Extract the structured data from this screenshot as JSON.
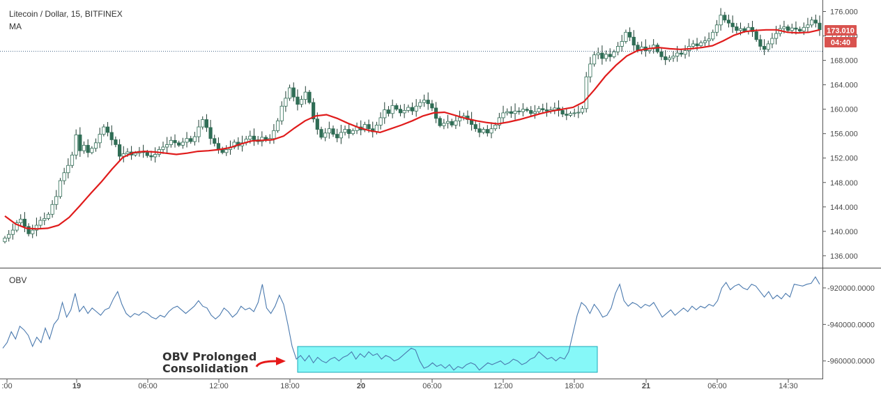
{
  "chart_data": [
    {
      "type": "candlestick",
      "title": "Litecoin / Dollar, 15, BITFINEX",
      "indicator_label": "MA",
      "y_ticks": [
        "176.000",
        "172.000",
        "168.000",
        "164.000",
        "160.000",
        "156.000",
        "152.000",
        "148.000",
        "144.000",
        "140.000",
        "136.000"
      ],
      "ylim": [
        134.5,
        177.2
      ],
      "last_price": "173.010",
      "countdown": "04:40",
      "colors": {
        "up": "#26a69a",
        "down": "#ef5350",
        "ma": "#e01b1b",
        "price_badge": "#d9534f"
      },
      "ohlc_closes": [
        138.9,
        139.5,
        140.2,
        141.4,
        142.0,
        140.8,
        139.6,
        140.2,
        141.0,
        141.8,
        142.1,
        142.8,
        144.4,
        145.7,
        148.3,
        149.6,
        150.8,
        152.5,
        155.8,
        153.2,
        154.1,
        152.9,
        153.6,
        154.5,
        155.9,
        157.1,
        156.2,
        155.0,
        154.2,
        152.3,
        152.7,
        153.0,
        152.5,
        152.8,
        153.1,
        152.9,
        152.4,
        152.2,
        152.6,
        153.4,
        153.8,
        154.2,
        154.9,
        154.5,
        154.1,
        154.6,
        155.2,
        154.7,
        155.5,
        157.1,
        158.3,
        157.0,
        155.2,
        154.4,
        153.5,
        152.9,
        153.4,
        153.8,
        154.6,
        154.0,
        154.5,
        155.1,
        155.6,
        155.0,
        154.7,
        155.4,
        154.9,
        155.2,
        156.5,
        158.1,
        160.5,
        161.8,
        163.5,
        162.0,
        160.8,
        161.6,
        162.8,
        161.1,
        158.4,
        156.7,
        155.4,
        156.1,
        156.8,
        155.9,
        155.3,
        156.2,
        156.7,
        156.0,
        156.5,
        157.1,
        156.6,
        157.5,
        156.8,
        156.3,
        157.4,
        158.6,
        159.9,
        159.3,
        160.6,
        160.0,
        159.4,
        159.8,
        160.3,
        159.7,
        160.5,
        161.1,
        161.5,
        160.9,
        160.2,
        158.5,
        157.3,
        157.7,
        158.0,
        157.4,
        158.1,
        158.6,
        158.9,
        158.3,
        157.5,
        156.8,
        156.2,
        156.7,
        156.1,
        156.8,
        157.4,
        158.6,
        159.4,
        159.6,
        159.3,
        159.7,
        159.6,
        160.0,
        159.8,
        159.3,
        159.6,
        160.1,
        159.9,
        159.7,
        159.9,
        160.2,
        159.8,
        159.2,
        159.0,
        159.3,
        159.4,
        159.5,
        160.1,
        165.3,
        167.4,
        168.9,
        169.2,
        168.3,
        169.0,
        168.6,
        169.4,
        170.3,
        171.1,
        172.6,
        171.8,
        170.5,
        169.7,
        170.2,
        169.6,
        169.9,
        170.5,
        169.4,
        168.6,
        168.1,
        168.4,
        168.7,
        169.2,
        169.0,
        169.6,
        170.3,
        170.7,
        170.4,
        170.9,
        171.2,
        171.5,
        172.6,
        173.8,
        175.4,
        174.6,
        174.1,
        173.5,
        172.9,
        173.2,
        172.8,
        173.4,
        172.7,
        171.4,
        170.3,
        169.8,
        170.7,
        171.6,
        172.4,
        173.2,
        173.5,
        172.9,
        173.3,
        173.1,
        172.8,
        173.4,
        173.8,
        174.6,
        174.1,
        173.01
      ],
      "ma_values": [
        142.5,
        141.2,
        140.5,
        140.4,
        140.5,
        141.0,
        142.3,
        144.2,
        146.2,
        148.1,
        150.2,
        152.1,
        152.9,
        153.1,
        153.0,
        152.8,
        152.6,
        152.8,
        153.1,
        153.2,
        153.4,
        153.7,
        154.3,
        154.8,
        154.9,
        155.0,
        155.6,
        156.9,
        158.1,
        158.9,
        159.1,
        158.5,
        157.7,
        157.0,
        156.5,
        156.2,
        156.8,
        157.4,
        158.1,
        158.9,
        159.4,
        159.5,
        159.0,
        158.5,
        158.1,
        157.8,
        157.6,
        157.9,
        158.3,
        158.8,
        159.3,
        159.7,
        160.0,
        160.3,
        161.2,
        163.2,
        165.4,
        167.2,
        168.7,
        169.6,
        169.9,
        170.1,
        169.9,
        169.8,
        169.9,
        170.1,
        170.4,
        171.2,
        172.1,
        172.7,
        172.9,
        173.0,
        173.0,
        172.6,
        172.5,
        172.6,
        173.0
      ],
      "obv_y_ticks": [
        "-920000.0000",
        "-940000.0000",
        "-960000.0000"
      ],
      "obv_ylim": [
        -968500,
        -912000
      ],
      "obv_values": [
        -953000,
        -950000,
        -944000,
        -948000,
        -941000,
        -943000,
        -946000,
        -952000,
        -947000,
        -950000,
        -942000,
        -948000,
        -940000,
        -937000,
        -928000,
        -936000,
        -932000,
        -923000,
        -933000,
        -930000,
        -934000,
        -931000,
        -933000,
        -935000,
        -932000,
        -931000,
        -926000,
        -922000,
        -929000,
        -934000,
        -936000,
        -934000,
        -935000,
        -933000,
        -934000,
        -936000,
        -937000,
        -935000,
        -936000,
        -933000,
        -931000,
        -930000,
        -932000,
        -934000,
        -932000,
        -930000,
        -927000,
        -930000,
        -931000,
        -935000,
        -937000,
        -935000,
        -931000,
        -933000,
        -936000,
        -934000,
        -930000,
        -932000,
        -931000,
        -933000,
        -928000,
        -918000,
        -931000,
        -934000,
        -930000,
        -924000,
        -929000,
        -940000,
        -952000,
        -959000,
        -957000,
        -960000,
        -957000,
        -961000,
        -958000,
        -960000,
        -961000,
        -959000,
        -958000,
        -960000,
        -958000,
        -957000,
        -955000,
        -959000,
        -956000,
        -958000,
        -955000,
        -957000,
        -956000,
        -959000,
        -957000,
        -958000,
        -960000,
        -959000,
        -957000,
        -955000,
        -953000,
        -954000,
        -960000,
        -964000,
        -963000,
        -961000,
        -963000,
        -962000,
        -964000,
        -962000,
        -965000,
        -963000,
        -964000,
        -962000,
        -961000,
        -962000,
        -965000,
        -963000,
        -961000,
        -962000,
        -961000,
        -960000,
        -962000,
        -961000,
        -959000,
        -960000,
        -962000,
        -961000,
        -959000,
        -958000,
        -955000,
        -957000,
        -959000,
        -958000,
        -960000,
        -958000,
        -959000,
        -955000,
        -945000,
        -935000,
        -928000,
        -930000,
        -934000,
        -929000,
        -932000,
        -936000,
        -935000,
        -931000,
        -923000,
        -918000,
        -927000,
        -930000,
        -928000,
        -929000,
        -931000,
        -929000,
        -930000,
        -928000,
        -932000,
        -936000,
        -934000,
        -932000,
        -935000,
        -933000,
        -931000,
        -933000,
        -930000,
        -932000,
        -930000,
        -931000,
        -929000,
        -930000,
        -927000,
        -920000,
        -917000,
        -921000,
        -919000,
        -918000,
        -920000,
        -921000,
        -918000,
        -919000,
        -922000,
        -925000,
        -922000,
        -926000,
        -924000,
        -926000,
        -923000,
        -925000,
        -918000,
        -918500,
        -919000,
        -918000,
        -917500,
        -914000,
        -918000
      ]
    }
  ],
  "obv_label": "OBV",
  "annotation": {
    "line1": "OBV Prolonged",
    "line2": "Consolidation"
  },
  "x_ticks": [
    ":00",
    "19",
    "06:00",
    "12:00",
    "18:00",
    "20",
    "06:00",
    "12:00",
    "18:00",
    "21",
    "06:00",
    "14:30"
  ],
  "x_ticks_bold": [
    false,
    true,
    false,
    false,
    false,
    true,
    false,
    false,
    false,
    true,
    false,
    false
  ]
}
